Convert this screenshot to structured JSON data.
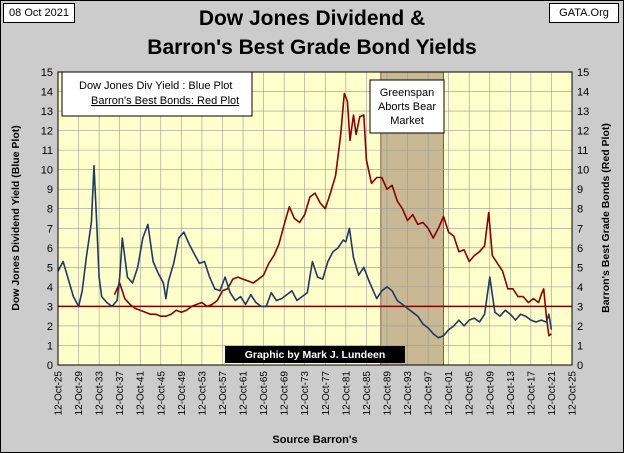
{
  "header": {
    "date": "08 Oct 2021",
    "source": "GATA.Org",
    "title_line1": "Dow Jones Dividend &",
    "title_line2": "Barron's Best Grade Bond Yields"
  },
  "legend": {
    "line1": "Dow Jones Div Yield : Blue Plot",
    "line2": "Barron's  Best Bonds: Red Plot"
  },
  "annotation": {
    "line1": "Greenspan",
    "line2": "Aborts Bear",
    "line3": "Market"
  },
  "credit": "Graphic by Mark J. Lundeen",
  "colors": {
    "plot_bg": "#ffffcc",
    "frame_bg": "#cccccc",
    "blue_plot": "#1f3864",
    "red_plot": "#8b0000",
    "shade": "#c8b894",
    "reference_line": "#800000"
  },
  "chart_data": {
    "type": "line",
    "title": "Dow Jones Dividend & Barron's Best Grade Bond Yields",
    "xlabel": "Source Barron's",
    "ylabel_left": "Dow Jones  Dividend  Yield (Blue Plot)",
    "ylabel_right": "Barron's  Best  Grade  Bonds  (Red Plot)",
    "ylim": [
      0,
      15
    ],
    "yticks": [
      "0",
      "1",
      "2",
      "3",
      "4",
      "5",
      "6",
      "7",
      "8",
      "9",
      "10",
      "11",
      "12",
      "13",
      "14",
      "15"
    ],
    "xlim": [
      1925,
      2025
    ],
    "xticks": [
      "12-Oct-25",
      "12-Oct-29",
      "12-Oct-33",
      "12-Oct-37",
      "12-Oct-41",
      "12-Oct-45",
      "12-Oct-49",
      "12-Oct-53",
      "12-Oct-57",
      "12-Oct-61",
      "12-Oct-65",
      "12-Oct-69",
      "12-Oct-73",
      "12-Oct-77",
      "12-Oct-81",
      "12-Oct-85",
      "12-Oct-89",
      "12-Oct-93",
      "12-Oct-97",
      "12-Oct-01",
      "12-Oct-05",
      "12-Oct-09",
      "12-Oct-13",
      "12-Oct-17",
      "12-Oct-21",
      "12-Oct-25"
    ],
    "grid": true,
    "reference_line": 3,
    "shaded_region": [
      1987.8,
      2000.0
    ],
    "series": [
      {
        "x": [
          1925.0,
          1926.0,
          1927.0,
          1928.0,
          1929.0,
          1929.7,
          1930.5,
          1931.5,
          1932.0,
          1932.5,
          1933.0,
          1933.5,
          1934.5,
          1935.5,
          1936.5,
          1937.0,
          1937.5,
          1938.5,
          1939.5,
          1940.5,
          1941.5,
          1942.5,
          1943.5,
          1944.5,
          1945.5,
          1946.0,
          1946.5,
          1947.5,
          1948.5,
          1949.5,
          1950.5,
          1951.5,
          1952.5,
          1953.5,
          1954.5,
          1955.5,
          1956.5,
          1957.5,
          1958.5,
          1959.5,
          1960.5,
          1961.5,
          1962.5,
          1963.5,
          1964.5,
          1965.5,
          1966.5,
          1967.5,
          1968.5,
          1969.5,
          1970.5,
          1971.5,
          1972.5,
          1973.5,
          1974.5,
          1975.5,
          1976.5,
          1977.5,
          1978.5,
          1979.5,
          1980.5,
          1981.0,
          1981.7,
          1982.5,
          1983.5,
          1984.5,
          1985.5,
          1986.5,
          1987.0,
          1988.0,
          1989.0,
          1990.0,
          1991.0,
          1992.0,
          1993.0,
          1994.0,
          1995.0,
          1996.0,
          1997.0,
          1998.0,
          1999.0,
          2000.0,
          2001.0,
          2002.0,
          2003.0,
          2004.0,
          2005.0,
          2006.0,
          2007.0,
          2008.0,
          2009.0,
          2010.0,
          2011.0,
          2012.0,
          2013.0,
          2014.0,
          2015.0,
          2016.0,
          2017.0,
          2018.0,
          2019.0,
          2020.0,
          2020.5,
          2021.0
        ],
        "y": [
          4.8,
          5.3,
          4.4,
          3.5,
          3.0,
          3.8,
          5.5,
          7.3,
          10.2,
          7.5,
          4.5,
          3.5,
          3.2,
          3.0,
          3.3,
          4.5,
          6.5,
          4.5,
          4.2,
          5.0,
          6.5,
          7.2,
          5.3,
          4.7,
          4.2,
          3.4,
          4.3,
          5.2,
          6.5,
          6.8,
          6.2,
          5.7,
          5.2,
          5.3,
          4.5,
          3.9,
          3.8,
          4.5,
          3.7,
          3.3,
          3.5,
          3.1,
          3.6,
          3.2,
          3.0,
          3.0,
          3.7,
          3.3,
          3.4,
          3.6,
          3.8,
          3.3,
          3.5,
          3.7,
          5.3,
          4.5,
          4.4,
          5.3,
          5.8,
          6.0,
          6.4,
          6.3,
          7.0,
          5.5,
          4.6,
          5.0,
          4.3,
          3.7,
          3.4,
          3.8,
          4.0,
          3.8,
          3.3,
          3.1,
          2.9,
          2.7,
          2.5,
          2.1,
          1.9,
          1.6,
          1.4,
          1.5,
          1.8,
          2.0,
          2.3,
          2.0,
          2.3,
          2.4,
          2.2,
          2.6,
          4.5,
          2.7,
          2.5,
          2.8,
          2.6,
          2.3,
          2.6,
          2.5,
          2.3,
          2.2,
          2.3,
          2.2,
          2.6,
          1.8
        ]
      },
      {
        "x": [
          1936.0,
          1937.0,
          1938.0,
          1939.0,
          1940.0,
          1941.0,
          1942.0,
          1943.0,
          1944.0,
          1945.0,
          1946.0,
          1947.0,
          1948.0,
          1949.0,
          1950.0,
          1951.0,
          1952.0,
          1953.0,
          1954.0,
          1955.0,
          1956.0,
          1957.0,
          1958.0,
          1959.0,
          1960.0,
          1961.0,
          1962.0,
          1963.0,
          1964.0,
          1965.0,
          1966.0,
          1967.0,
          1968.0,
          1969.0,
          1970.0,
          1971.0,
          1972.0,
          1973.0,
          1974.0,
          1975.0,
          1976.0,
          1977.0,
          1978.0,
          1979.0,
          1980.0,
          1980.7,
          1981.3,
          1981.8,
          1982.5,
          1983.0,
          1983.7,
          1984.5,
          1985.0,
          1986.0,
          1987.0,
          1988.0,
          1989.0,
          1990.0,
          1991.0,
          1992.0,
          1993.0,
          1994.0,
          1995.0,
          1996.0,
          1997.0,
          1998.0,
          1999.0,
          2000.0,
          2001.0,
          2002.0,
          2003.0,
          2004.0,
          2005.0,
          2006.0,
          2007.0,
          2008.0,
          2008.8,
          2009.5,
          2010.5,
          2011.5,
          2012.5,
          2013.5,
          2014.5,
          2015.5,
          2016.5,
          2017.5,
          2018.5,
          2019.0,
          2019.5,
          2020.0,
          2020.5,
          2021.0
        ],
        "y": [
          3.6,
          4.2,
          3.4,
          3.1,
          2.9,
          2.8,
          2.7,
          2.6,
          2.6,
          2.5,
          2.5,
          2.6,
          2.8,
          2.7,
          2.8,
          3.0,
          3.1,
          3.2,
          3.0,
          3.1,
          3.3,
          3.8,
          3.9,
          4.4,
          4.5,
          4.4,
          4.3,
          4.2,
          4.4,
          4.6,
          5.2,
          5.6,
          6.2,
          7.2,
          8.1,
          7.5,
          7.3,
          7.7,
          8.6,
          8.8,
          8.3,
          8.0,
          8.8,
          9.7,
          11.8,
          13.9,
          13.5,
          11.5,
          12.8,
          11.8,
          12.7,
          12.8,
          10.5,
          9.3,
          9.6,
          9.6,
          9.0,
          9.2,
          8.4,
          8.0,
          7.4,
          7.7,
          7.2,
          7.3,
          7.0,
          6.5,
          7.0,
          7.6,
          6.8,
          6.6,
          5.8,
          5.9,
          5.3,
          5.6,
          5.8,
          6.1,
          7.8,
          5.6,
          5.2,
          4.8,
          3.9,
          3.9,
          3.5,
          3.5,
          3.2,
          3.4,
          3.2,
          3.6,
          3.9,
          2.5,
          1.5,
          1.6
        ]
      }
    ]
  }
}
